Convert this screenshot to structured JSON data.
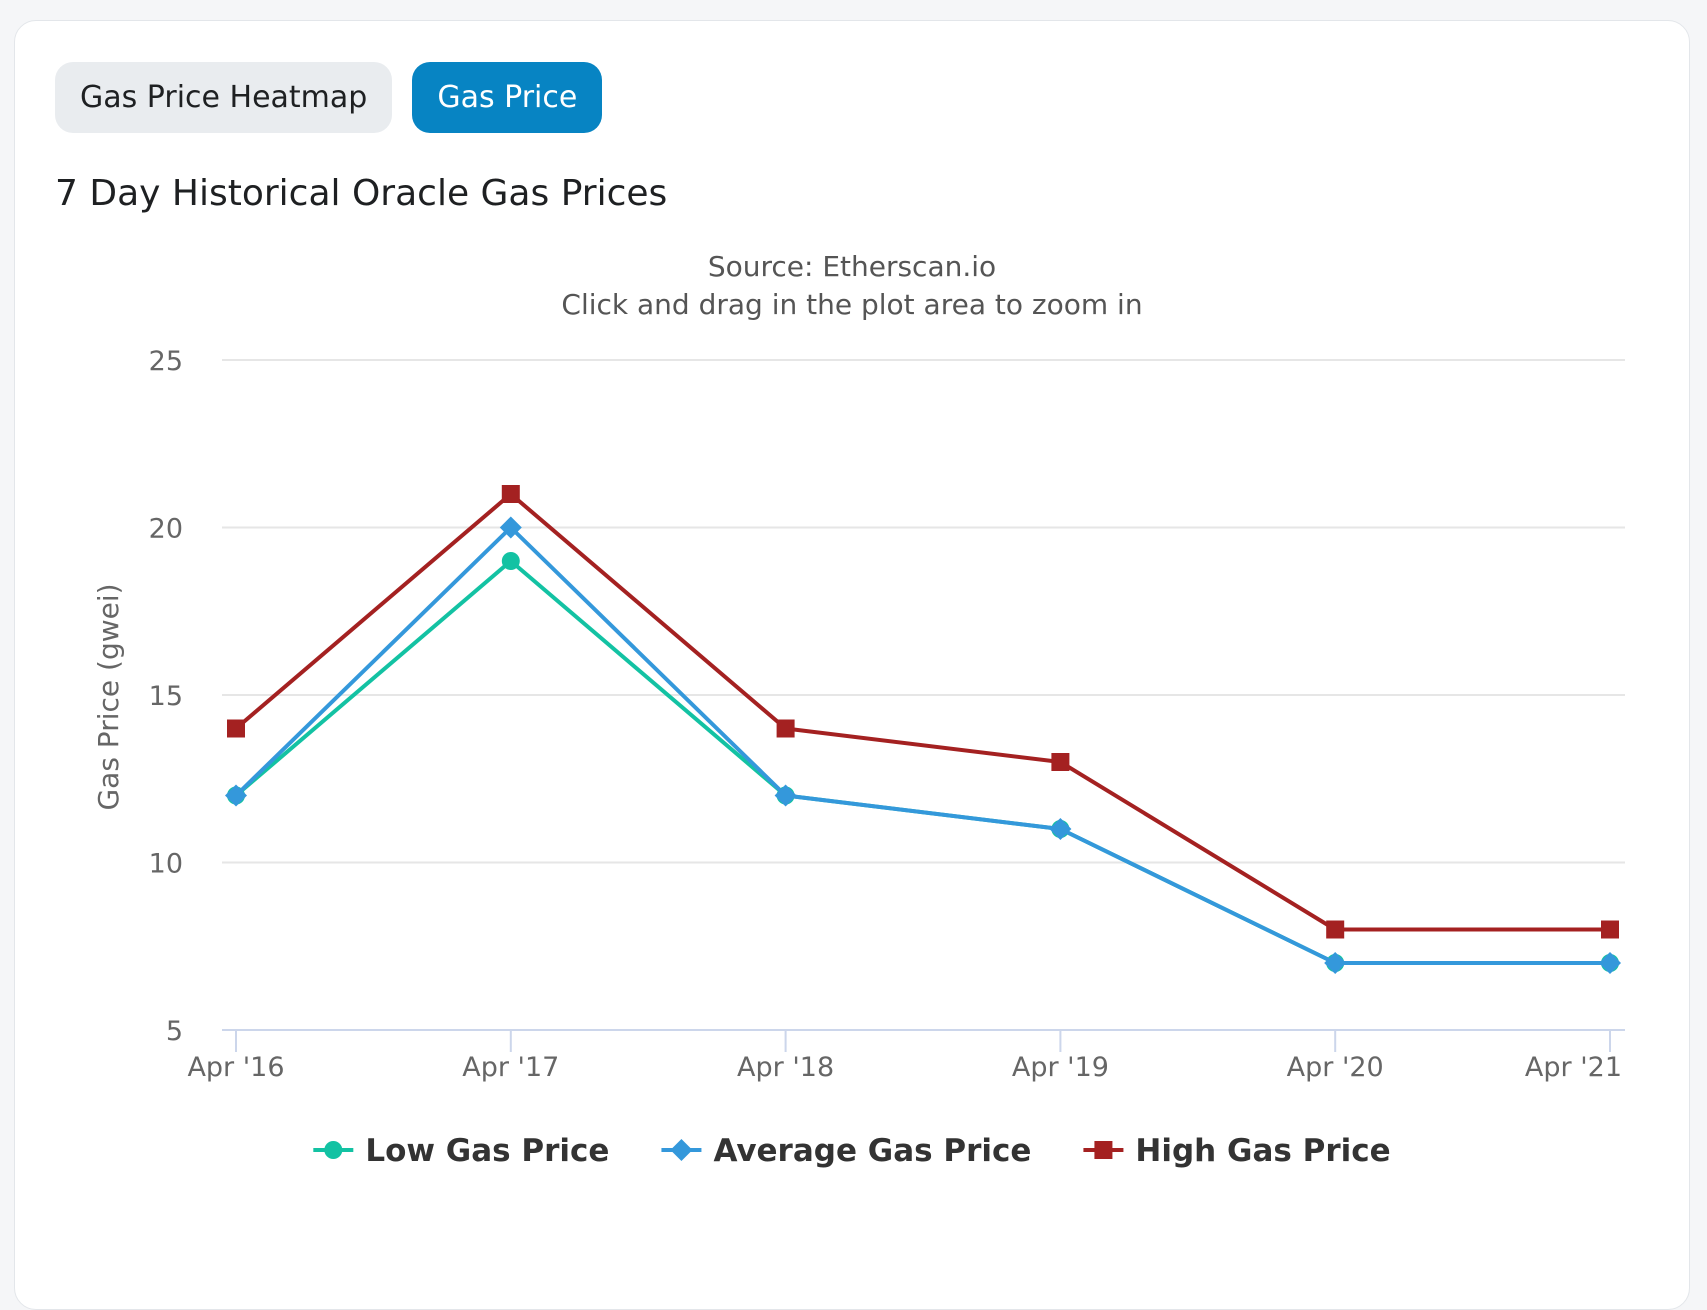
{
  "tabs": [
    {
      "label": "Gas Price Heatmap",
      "active": false
    },
    {
      "label": "Gas Price",
      "active": true
    }
  ],
  "title": "7 Day Historical Oracle Gas Prices",
  "colors": {
    "accent": "#0784c3",
    "low": "#13c2a3",
    "average": "#3498db",
    "high": "#a42121"
  },
  "chart_data": {
    "type": "line",
    "subtitle_lines": [
      "Source: Etherscan.io",
      "Click and drag in the plot area to zoom in"
    ],
    "ylabel": "Gas Price (gwei)",
    "xlabel": "",
    "categories": [
      "Apr '16",
      "Apr '17",
      "Apr '18",
      "Apr '19",
      "Apr '20",
      "Apr '21"
    ],
    "yticks": [
      5,
      10,
      15,
      20,
      25
    ],
    "ylim": [
      5,
      25
    ],
    "grid": true,
    "legend_placement": "bottom-center",
    "series": [
      {
        "name": "Low Gas Price",
        "marker": "circle",
        "color": "#13c2a3",
        "values": [
          12,
          19,
          12,
          11,
          7,
          7
        ]
      },
      {
        "name": "Average Gas Price",
        "marker": "diamond",
        "color": "#3498db",
        "values": [
          12,
          20,
          12,
          11,
          7,
          7
        ]
      },
      {
        "name": "High Gas Price",
        "marker": "square",
        "color": "#a42121",
        "values": [
          14,
          21,
          14,
          13,
          8,
          8
        ]
      }
    ]
  }
}
